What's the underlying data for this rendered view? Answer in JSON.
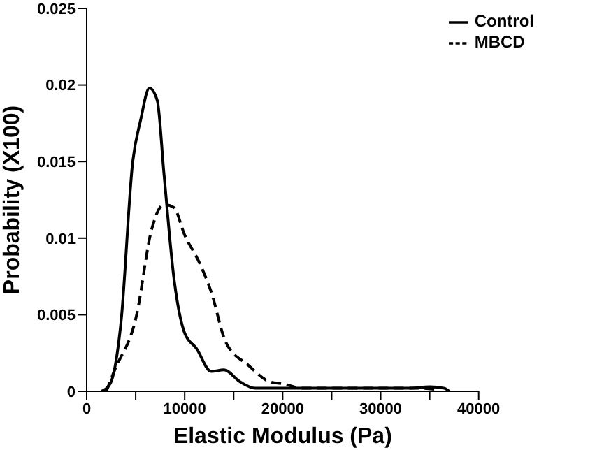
{
  "chart_data": {
    "type": "line",
    "xlabel": "Elastic Modulus (Pa)",
    "ylabel": "Probability (X100)",
    "xlim": [
      0,
      40000
    ],
    "xticks": [
      0,
      {
        "value": 5000,
        "label": null
      },
      10000,
      {
        "value": 15000,
        "label": null
      },
      20000,
      {
        "value": 25000,
        "label": null
      },
      30000,
      {
        "value": 35000,
        "label": null
      },
      40000
    ],
    "ylim": [
      0,
      0.025
    ],
    "yticks": [
      0,
      0.005,
      0.01,
      0.015,
      0.02,
      0.025
    ],
    "grid": false,
    "legend": "top right",
    "marker": "none",
    "series": [
      {
        "name": "Control",
        "color": "#000000",
        "line_style": "solid",
        "x": [
          1500,
          2400,
          3500,
          4700,
          5500,
          6400,
          7200,
          7900,
          8900,
          10000,
          11200,
          12700,
          14000,
          15700,
          17200,
          20000,
          25000,
          30000,
          33000,
          35000,
          36500,
          37000
        ],
        "values": [
          0,
          0.0005,
          0.0045,
          0.015,
          0.0177,
          0.0198,
          0.019,
          0.0141,
          0.0074,
          0.0038,
          0.0028,
          0.0013,
          0.0014,
          0.0006,
          0.0002,
          0.0002,
          0.0002,
          0.0002,
          0.0002,
          0.0003,
          0.0002,
          0
        ]
      },
      {
        "name": "MBCD",
        "color": "#000000",
        "line_style": "dashed",
        "x": [
          2000,
          2800,
          5100,
          6600,
          7900,
          8900,
          10000,
          11500,
          12700,
          14200,
          16500,
          18800,
          20000,
          22000,
          26000,
          30000,
          34000,
          36000
        ],
        "values": [
          0,
          0.0013,
          0.005,
          0.0105,
          0.0122,
          0.012,
          0.0102,
          0.0084,
          0.0065,
          0.0032,
          0.0017,
          0.0006,
          0.0005,
          0.0002,
          0.0002,
          0.0002,
          0.0002,
          0.0001
        ]
      }
    ]
  }
}
